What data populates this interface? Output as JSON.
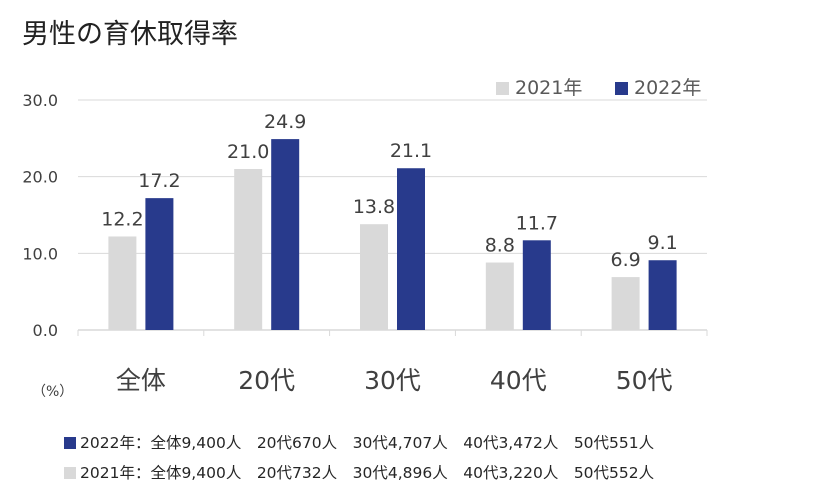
{
  "title": "男性の育休取得率",
  "unit_label": "（%）",
  "colors": {
    "s2021": "#d9d9d9",
    "s2022": "#283a8c",
    "grid": "#d9d9d9",
    "text": "#404040"
  },
  "notes": {
    "n2022": "2022年：全体9,400人　20代670人　30代4,707人　40代3,472人　50代551人",
    "n2021": "2021年：全体9,400人　20代732人　30代4,896人　40代3,220人　50代552人"
  },
  "chart_data": {
    "type": "bar",
    "title": "男性の育休取得率",
    "categories": [
      "全体",
      "20代",
      "30代",
      "40代",
      "50代"
    ],
    "series": [
      {
        "name": "2021年",
        "values": [
          12.2,
          21.0,
          13.8,
          8.8,
          6.9
        ]
      },
      {
        "name": "2022年",
        "values": [
          17.2,
          24.9,
          21.1,
          11.7,
          9.1
        ]
      }
    ],
    "data_labels": [
      [
        "12.2",
        "21.0",
        "13.8",
        "8.8",
        "6.9"
      ],
      [
        "17.2",
        "24.9",
        "21.1",
        "11.7",
        "9.1"
      ]
    ],
    "yticks": [
      "0.0",
      "10.0",
      "20.0",
      "30.0"
    ],
    "ytick_values": [
      0,
      10,
      20,
      30
    ],
    "ylim": [
      0,
      30
    ],
    "ylabel": "（%）",
    "xlabel": "",
    "grid": true,
    "legend": "top-right"
  }
}
